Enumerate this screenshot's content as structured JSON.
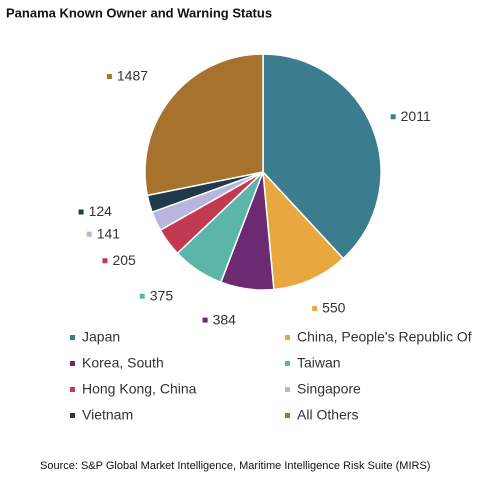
{
  "chart_data": {
    "type": "pie",
    "title": "Panama Known Owner and Warning Status",
    "categories": [
      "Japan",
      "China, People's Republic Of",
      "Korea, South",
      "Taiwan",
      "Hong Kong, China",
      "Singapore",
      "Vietnam",
      "All Others"
    ],
    "values": [
      2011,
      550,
      384,
      375,
      205,
      141,
      124,
      1487
    ],
    "colors": [
      "#3b7d8e",
      "#e9a83f",
      "#6b2a72",
      "#5bb6a9",
      "#c23a52",
      "#b8b6de",
      "#1f3b4b",
      "#a6722e"
    ],
    "source": "Source: S&P Global Market Intelligence, Maritime Intelligence Risk Suite (MIRS)"
  }
}
